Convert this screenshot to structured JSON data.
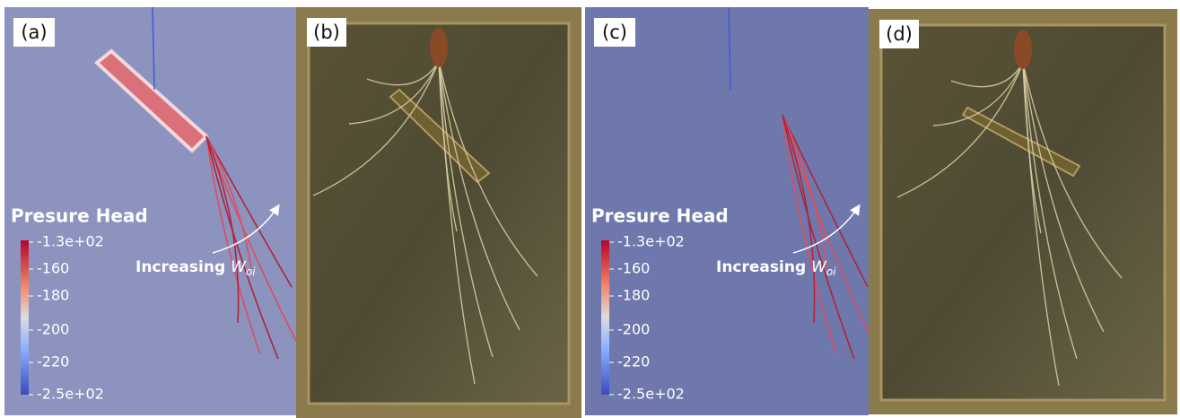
{
  "panels": [
    {
      "label": "(a)",
      "colorbar": {
        "title": "Presure Head",
        "ticks": [
          "-1.3e+02",
          "-160",
          "-180",
          "-200",
          "-220",
          "-2.5e+02"
        ]
      },
      "annotation": {
        "text": "Increasing",
        "symbol": "W",
        "subscript": "oi"
      }
    },
    {
      "label": "(b)"
    },
    {
      "label": "(c)",
      "colorbar": {
        "title": "Presure Head",
        "ticks": [
          "-1.3e+02",
          "-160",
          "-180",
          "-200",
          "-220",
          "-2.5e+02"
        ]
      },
      "annotation": {
        "text": "Increasing",
        "symbol": "W",
        "subscript": "oi"
      }
    },
    {
      "label": "(d)"
    }
  ]
}
